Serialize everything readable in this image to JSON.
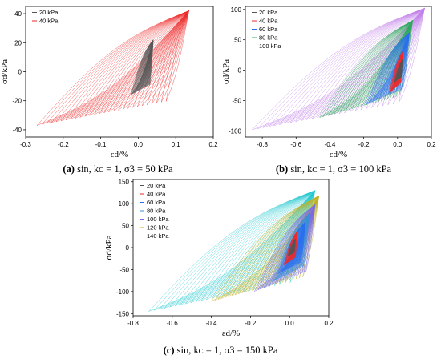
{
  "chart_data": [
    {
      "type": "line",
      "caption": {
        "letter": "(a)",
        "text": " sin, kᴄ = 1,  σ3 = 50 kPa"
      },
      "xlabel": "εd/%",
      "ylabel": "σd/kPa",
      "xlim": [
        -0.3,
        0.2
      ],
      "ylim": [
        -45,
        45
      ],
      "xticks": [
        -0.3,
        -0.2,
        -0.1,
        0.0,
        0.1,
        0.2
      ],
      "yticks": [
        -40,
        -20,
        0,
        20,
        40
      ],
      "xtick_labels": [
        "-0.3",
        "-0.2",
        "-0.1",
        "0.0",
        "0.1",
        "0.2"
      ],
      "ytick_labels": [
        "-40",
        "-20",
        "0",
        "20",
        "40"
      ],
      "grid": false,
      "legend_position": "top-left",
      "series": [
        {
          "name": "20 kPa",
          "color": "#555555",
          "x_min": -0.02,
          "x_max": 0.04,
          "y_min": -16,
          "y_max": 22
        },
        {
          "name": "40 kPa",
          "color": "#ee2a2a",
          "x_min": -0.27,
          "x_max": 0.135,
          "y_min": -37,
          "y_max": 42
        }
      ]
    },
    {
      "type": "line",
      "caption": {
        "letter": "(b)",
        "text": " sin, kᴄ = 1,  σ3 = 100 kPa"
      },
      "xlabel": "εd/%",
      "ylabel": "σd/kPa",
      "xlim": [
        -0.9,
        0.2
      ],
      "ylim": [
        -110,
        105
      ],
      "xticks": [
        -0.8,
        -0.6,
        -0.4,
        -0.2,
        0.0,
        0.2
      ],
      "yticks": [
        -100,
        -50,
        0,
        50,
        100
      ],
      "xtick_labels": [
        "-0.8",
        "-0.6",
        "-0.4",
        "-0.2",
        "0.0",
        "0.2"
      ],
      "ytick_labels": [
        "-100",
        "-50",
        "0",
        "50",
        "100"
      ],
      "grid": false,
      "legend_position": "top-left",
      "series": [
        {
          "name": "20 kPa",
          "color": "#555555",
          "x_min": -0.02,
          "x_max": 0.03,
          "y_min": -20,
          "y_max": 18
        },
        {
          "name": "40 kPa",
          "color": "#ee2a2a",
          "x_min": -0.05,
          "x_max": 0.03,
          "y_min": -38,
          "y_max": 30
        },
        {
          "name": "60 kPa",
          "color": "#2a6ef0",
          "x_min": -0.19,
          "x_max": 0.07,
          "y_min": -57,
          "y_max": 62
        },
        {
          "name": "80 kPa",
          "color": "#2ca85a",
          "x_min": -0.46,
          "x_max": 0.09,
          "y_min": -78,
          "y_max": 82
        },
        {
          "name": "100 kPa",
          "color": "#c07ee8",
          "x_min": -0.86,
          "x_max": 0.16,
          "y_min": -98,
          "y_max": 102
        }
      ]
    },
    {
      "type": "line",
      "caption": {
        "letter": "(c)",
        "text": " sin, kᴄ = 1,   σ3 = 150 kPa"
      },
      "xlabel": "εd/%",
      "ylabel": "σd/kPa",
      "xlim": [
        -0.8,
        0.2
      ],
      "ylim": [
        -155,
        155
      ],
      "xticks": [
        -0.8,
        -0.6,
        -0.4,
        -0.2,
        0.0,
        0.2
      ],
      "yticks": [
        -150,
        -100,
        -50,
        0,
        50,
        100,
        150
      ],
      "xtick_labels": [
        "-0.8",
        "-0.6",
        "-0.4",
        "-0.2",
        "0.0",
        "0.2"
      ],
      "ytick_labels": [
        "-150",
        "-100",
        "-50",
        "0",
        "50",
        "100",
        "150"
      ],
      "grid": false,
      "legend_position": "top-left",
      "series": [
        {
          "name": "20 kPa",
          "color": "#555555",
          "x_min": -0.01,
          "x_max": 0.03,
          "y_min": -20,
          "y_max": 20
        },
        {
          "name": "40 kPa",
          "color": "#ee2a2a",
          "x_min": -0.03,
          "x_max": 0.04,
          "y_min": -40,
          "y_max": 38
        },
        {
          "name": "60 kPa",
          "color": "#2a6ef0",
          "x_min": -0.06,
          "x_max": 0.08,
          "y_min": -60,
          "y_max": 58
        },
        {
          "name": "80 kPa",
          "color": "#3a8fd8",
          "x_min": -0.09,
          "x_max": 0.1,
          "y_min": -78,
          "y_max": 78
        },
        {
          "name": "100 kPa",
          "color": "#7a6ae6",
          "x_min": -0.18,
          "x_max": 0.13,
          "y_min": -100,
          "y_max": 98
        },
        {
          "name": "120 kPa",
          "color": "#c0b024",
          "x_min": -0.4,
          "x_max": 0.15,
          "y_min": -122,
          "y_max": 118
        },
        {
          "name": "140 kPa",
          "color": "#22c8d0",
          "x_min": -0.72,
          "x_max": 0.13,
          "y_min": -145,
          "y_max": 130
        }
      ]
    }
  ]
}
